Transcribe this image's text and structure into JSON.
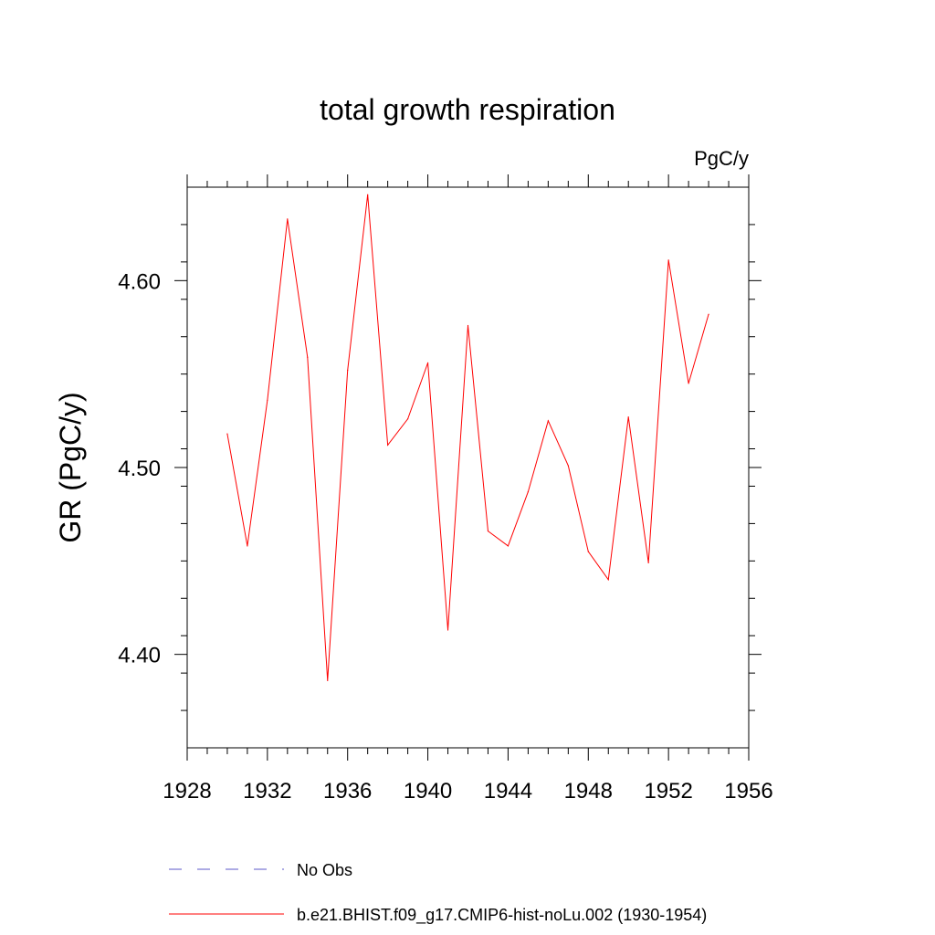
{
  "chart_data": {
    "type": "line",
    "title": "total growth respiration",
    "units_label": "PgC/y",
    "xlabel": "",
    "ylabel": "GR  (PgC/y)",
    "xlim": [
      1928,
      1956
    ],
    "ylim": [
      4.35,
      4.65
    ],
    "x_ticks": [
      1928,
      1932,
      1936,
      1940,
      1944,
      1948,
      1952,
      1956
    ],
    "x_tick_labels": [
      "1928",
      "1932",
      "1936",
      "1940",
      "1944",
      "1948",
      "1952",
      "1956"
    ],
    "y_major_ticks": [
      4.4,
      4.5,
      4.6
    ],
    "y_tick_labels": [
      "4.40",
      "4.50",
      "4.60"
    ],
    "x_minor_step": 1,
    "y_minor_step": 0.02,
    "grid": false,
    "legend_position": "bottom",
    "series": [
      {
        "name": "b.e21.BHIST.f09_g17.CMIP6-hist-noLu.002 (1930-1954)",
        "color": "#ff0000",
        "style": "solid",
        "x": [
          1930,
          1931,
          1932,
          1933,
          1934,
          1935,
          1936,
          1937,
          1938,
          1939,
          1940,
          1941,
          1942,
          1943,
          1944,
          1945,
          1946,
          1947,
          1948,
          1949,
          1950,
          1951,
          1952,
          1953,
          1954
        ],
        "y": [
          4.518,
          4.458,
          4.536,
          4.633,
          4.559,
          4.386,
          4.552,
          4.646,
          4.512,
          4.526,
          4.556,
          4.413,
          4.576,
          4.466,
          4.458,
          4.487,
          4.525,
          4.501,
          4.455,
          4.44,
          4.527,
          4.449,
          4.611,
          4.545,
          4.582
        ]
      }
    ],
    "legend": [
      {
        "label": "No Obs",
        "color": "#5b57c9",
        "style": "dashed"
      },
      {
        "label": "b.e21.BHIST.f09_g17.CMIP6-hist-noLu.002 (1930-1954)",
        "color": "#ff0000",
        "style": "solid"
      }
    ]
  }
}
